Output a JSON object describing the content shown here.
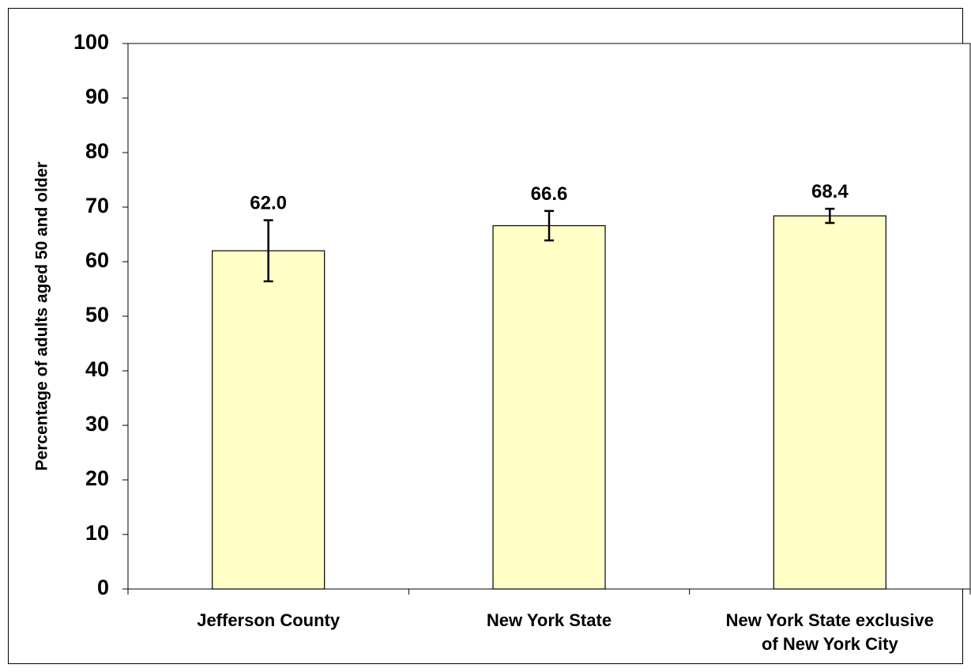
{
  "chart_data": {
    "type": "bar",
    "title": "",
    "ylabel": "Percentage of adults aged 50 and older",
    "xlabel": "",
    "ylim": [
      0,
      100
    ],
    "yticks": [
      0,
      10,
      20,
      30,
      40,
      50,
      60,
      70,
      80,
      90,
      100
    ],
    "grid": false,
    "legend": "none",
    "categories": [
      [
        "Jefferson County"
      ],
      [
        "New York State"
      ],
      [
        "New York State exclusive",
        "of New York City"
      ]
    ],
    "values": [
      62.0,
      66.6,
      68.4
    ],
    "value_labels": [
      "62.0",
      "66.6",
      "68.4"
    ],
    "error_bars": [
      {
        "lower": 56.4,
        "upper": 67.6
      },
      {
        "lower": 63.9,
        "upper": 69.3
      },
      {
        "lower": 67.1,
        "upper": 69.7
      }
    ],
    "colors": {
      "bar_fill": "#ffffc6",
      "bar_stroke": "#000000",
      "axis": "#000000",
      "background": "#ffffff"
    }
  }
}
